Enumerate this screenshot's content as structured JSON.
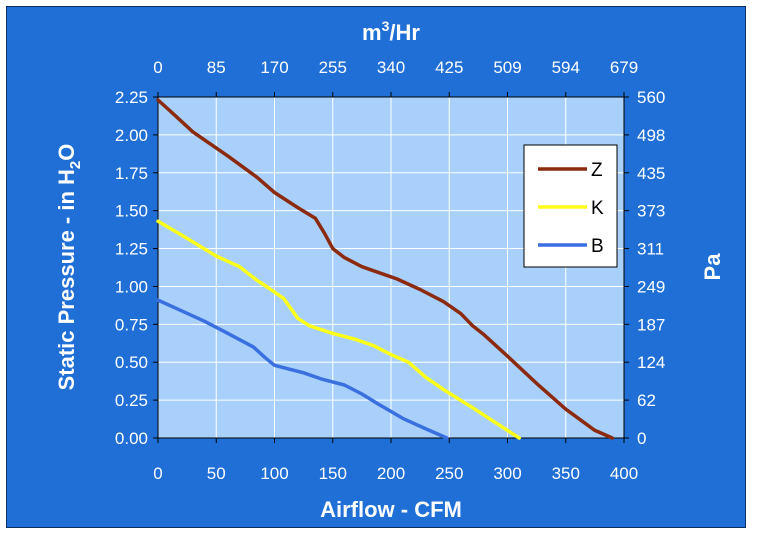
{
  "chart_data": {
    "type": "line",
    "xlabel": "Airflow - CFM",
    "ylabel": "Static Pressure - in H2O",
    "ylabel_parts": {
      "before": "Static Pressure - in H",
      "sub": "2",
      "after": "O"
    },
    "x2label": "m3/Hr",
    "x2label_parts": {
      "base": "m",
      "sup": "3",
      "after": "/Hr"
    },
    "y2label": "Pa",
    "xlim": [
      0,
      400
    ],
    "ylim": [
      0,
      2.25
    ],
    "x_ticks": [
      "0",
      "50",
      "100",
      "150",
      "200",
      "250",
      "300",
      "350",
      "400"
    ],
    "y_ticks": [
      "0.00",
      "0.25",
      "0.50",
      "0.75",
      "1.00",
      "1.25",
      "1.50",
      "1.75",
      "2.00",
      "2.25"
    ],
    "x2_ticks": [
      "0",
      "85",
      "170",
      "255",
      "340",
      "425",
      "509",
      "594",
      "679"
    ],
    "y2_ticks": [
      "0",
      "62",
      "124",
      "187",
      "249",
      "311",
      "373",
      "435",
      "498",
      "560"
    ],
    "grid": true,
    "legend_position": "top-right",
    "series": [
      {
        "name": "Z",
        "color": "#8b2a0f",
        "points": [
          [
            0,
            2.23
          ],
          [
            10,
            2.16
          ],
          [
            30,
            2.02
          ],
          [
            60,
            1.86
          ],
          [
            85,
            1.72
          ],
          [
            100,
            1.62
          ],
          [
            120,
            1.52
          ],
          [
            135,
            1.45
          ],
          [
            143,
            1.35
          ],
          [
            150,
            1.25
          ],
          [
            160,
            1.19
          ],
          [
            175,
            1.13
          ],
          [
            190,
            1.09
          ],
          [
            205,
            1.05
          ],
          [
            225,
            0.98
          ],
          [
            245,
            0.9
          ],
          [
            260,
            0.82
          ],
          [
            270,
            0.74
          ],
          [
            280,
            0.68
          ],
          [
            300,
            0.54
          ],
          [
            325,
            0.36
          ],
          [
            350,
            0.19
          ],
          [
            375,
            0.05
          ],
          [
            390,
            0.0
          ]
        ]
      },
      {
        "name": "K",
        "color": "#ffff1a",
        "points": [
          [
            0,
            1.43
          ],
          [
            20,
            1.34
          ],
          [
            50,
            1.2
          ],
          [
            70,
            1.13
          ],
          [
            85,
            1.04
          ],
          [
            95,
            0.99
          ],
          [
            108,
            0.92
          ],
          [
            120,
            0.79
          ],
          [
            130,
            0.74
          ],
          [
            150,
            0.69
          ],
          [
            170,
            0.65
          ],
          [
            185,
            0.61
          ],
          [
            200,
            0.55
          ],
          [
            215,
            0.5
          ],
          [
            230,
            0.4
          ],
          [
            245,
            0.32
          ],
          [
            270,
            0.2
          ],
          [
            290,
            0.1
          ],
          [
            310,
            0.0
          ]
        ]
      },
      {
        "name": "B",
        "color": "#3a6fe0",
        "points": [
          [
            0,
            0.91
          ],
          [
            20,
            0.84
          ],
          [
            40,
            0.77
          ],
          [
            60,
            0.69
          ],
          [
            82,
            0.6
          ],
          [
            92,
            0.53
          ],
          [
            100,
            0.48
          ],
          [
            110,
            0.46
          ],
          [
            125,
            0.43
          ],
          [
            140,
            0.39
          ],
          [
            160,
            0.35
          ],
          [
            175,
            0.29
          ],
          [
            190,
            0.22
          ],
          [
            210,
            0.13
          ],
          [
            230,
            0.06
          ],
          [
            248,
            0.0
          ]
        ]
      }
    ]
  }
}
